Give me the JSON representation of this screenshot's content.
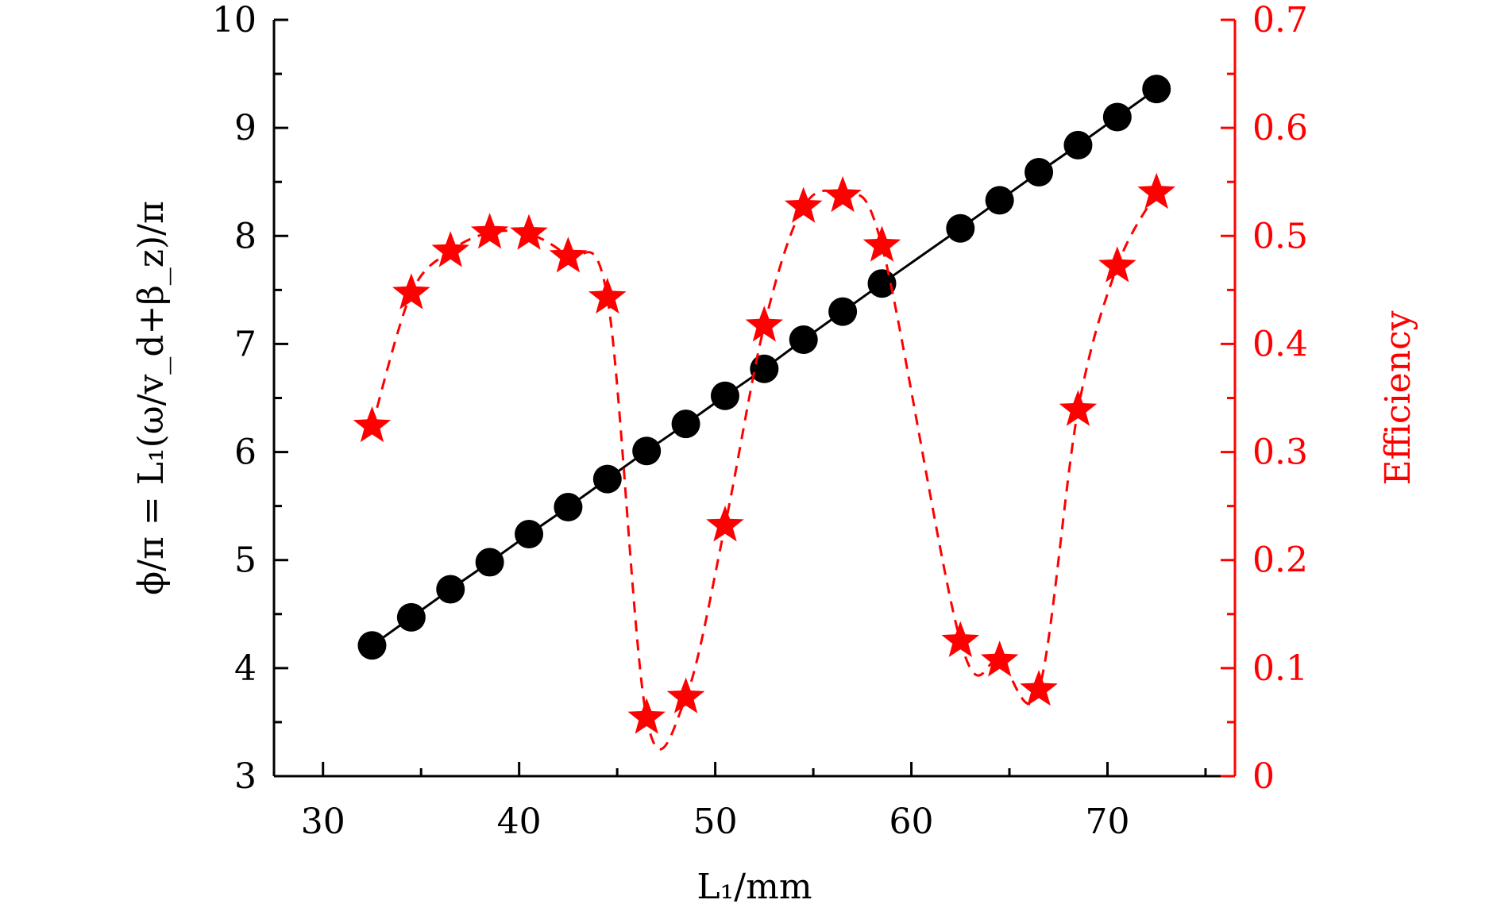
{
  "chart_data": {
    "type": "line",
    "xlabel": "L₁/mm",
    "ylabel": "ϕ/π = L₁(ω/v_d+β_z)/π",
    "y2label": "Efficiency",
    "xlim": [
      27.5,
      76.5
    ],
    "ylim": [
      3,
      10
    ],
    "y2lim": [
      0,
      0.7
    ],
    "x_ticks": [
      "30",
      "40",
      "50",
      "60",
      "70"
    ],
    "x_tick_values": [
      30,
      40,
      50,
      60,
      70
    ],
    "y_ticks": [
      "3",
      "4",
      "5",
      "6",
      "7",
      "8",
      "9",
      "10"
    ],
    "y_tick_values": [
      3,
      4,
      5,
      6,
      7,
      8,
      9,
      10
    ],
    "y2_ticks": [
      "0",
      "0.1",
      "0.2",
      "0.3",
      "0.4",
      "0.5",
      "0.6",
      "0.7"
    ],
    "y2_tick_values": [
      0,
      0.1,
      0.2,
      0.3,
      0.4,
      0.5,
      0.6,
      0.7
    ],
    "grid": false,
    "colors": {
      "phase": "#000000",
      "efficiency": "#ff0000",
      "axis_left": "#000000",
      "axis_right": "#ff0000"
    },
    "series": [
      {
        "key": "phase",
        "axis": "left",
        "marker": "circle",
        "line": "solid",
        "x": [
          32.5,
          34.5,
          36.5,
          38.5,
          40.5,
          42.5,
          44.5,
          46.5,
          48.5,
          50.5,
          52.5,
          54.5,
          56.5,
          58.5,
          62.5,
          64.5,
          66.5,
          68.5,
          70.5,
          72.5
        ],
        "y": [
          4.21,
          4.47,
          4.73,
          4.98,
          5.24,
          5.49,
          5.75,
          6.01,
          6.26,
          6.52,
          6.77,
          7.04,
          7.3,
          7.56,
          8.07,
          8.33,
          8.59,
          8.84,
          9.1,
          9.36
        ]
      },
      {
        "key": "efficiency",
        "axis": "right",
        "marker": "star",
        "line": "dashed",
        "x": [
          32.5,
          34.5,
          36.5,
          38.5,
          40.5,
          42.5,
          44.5,
          46.5,
          48.5,
          50.5,
          52.5,
          54.5,
          56.5,
          58.5,
          62.5,
          64.5,
          66.5,
          68.5,
          70.5,
          72.5
        ],
        "y": [
          0.324,
          0.447,
          0.486,
          0.503,
          0.502,
          0.481,
          0.443,
          0.054,
          0.073,
          0.232,
          0.417,
          0.527,
          0.537,
          0.491,
          0.125,
          0.107,
          0.08,
          0.339,
          0.472,
          0.54
        ]
      }
    ]
  }
}
